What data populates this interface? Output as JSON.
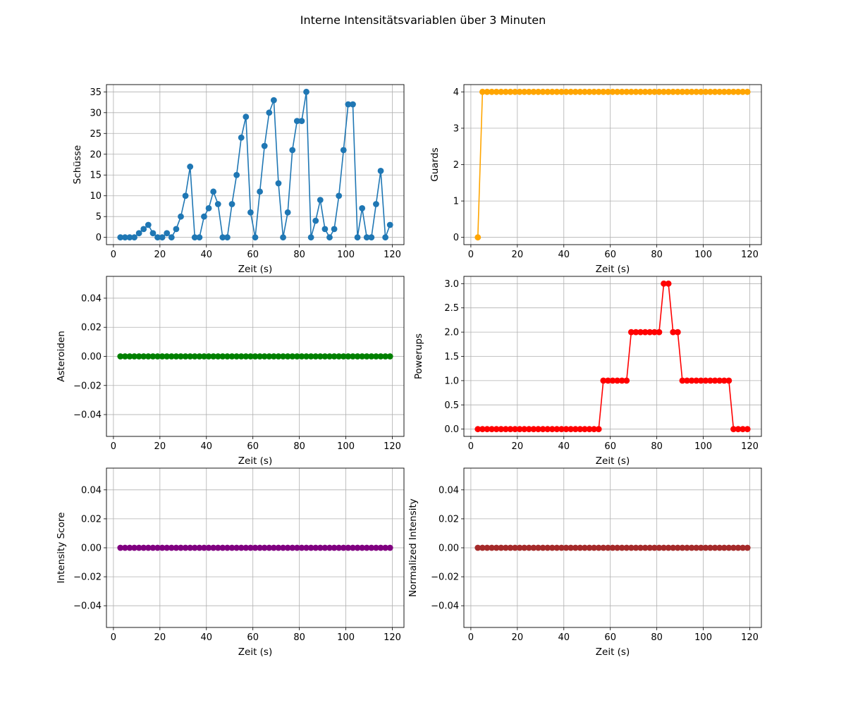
{
  "figure": {
    "suptitle": "Interne Intensitätsvariablen über 3 Minuten"
  },
  "chart_data": [
    {
      "type": "line",
      "xlabel": "Zeit (s)",
      "ylabel": "Schüsse",
      "color": "#1f77b4",
      "grid": true,
      "xlim": [
        -3,
        125
      ],
      "ylim": [
        -1.75,
        36.75
      ],
      "xticks": [
        0,
        20,
        40,
        60,
        80,
        100,
        120
      ],
      "yticks": [
        0,
        5,
        10,
        15,
        20,
        25,
        30,
        35
      ],
      "ytick_labels": [
        "0",
        "5",
        "10",
        "15",
        "20",
        "25",
        "30",
        "35"
      ],
      "x_start": 3,
      "x_step": 2,
      "count": 59,
      "values": [
        0,
        0,
        0,
        0,
        1,
        2,
        3,
        1,
        0,
        0,
        1,
        0,
        2,
        5,
        10,
        17,
        0,
        0,
        5,
        7,
        11,
        8,
        0,
        0,
        8,
        15,
        24,
        29,
        6,
        0,
        11,
        22,
        30,
        33,
        13,
        0,
        6,
        21,
        28,
        28,
        35,
        0,
        4,
        9,
        2,
        0,
        2,
        10,
        21,
        32,
        32,
        0,
        7,
        0,
        0,
        8,
        16,
        0,
        3
      ]
    },
    {
      "type": "line",
      "xlabel": "Zeit (s)",
      "ylabel": "Guards",
      "color": "#ffa500",
      "grid": true,
      "xlim": [
        -3,
        125
      ],
      "ylim": [
        -0.2,
        4.2
      ],
      "xticks": [
        0,
        20,
        40,
        60,
        80,
        100,
        120
      ],
      "yticks": [
        0,
        1,
        2,
        3,
        4
      ],
      "ytick_labels": [
        "0",
        "1",
        "2",
        "3",
        "4"
      ],
      "x_start": 3,
      "x_step": 2,
      "count": 59,
      "values": [
        0,
        4,
        4,
        4,
        4,
        4,
        4,
        4,
        4,
        4,
        4,
        4,
        4,
        4,
        4,
        4,
        4,
        4,
        4,
        4,
        4,
        4,
        4,
        4,
        4,
        4,
        4,
        4,
        4,
        4,
        4,
        4,
        4,
        4,
        4,
        4,
        4,
        4,
        4,
        4,
        4,
        4,
        4,
        4,
        4,
        4,
        4,
        4,
        4,
        4,
        4,
        4,
        4,
        4,
        4,
        4,
        4,
        4,
        4
      ]
    },
    {
      "type": "line",
      "xlabel": "Zeit (s)",
      "ylabel": "Asteroiden",
      "color": "#008000",
      "grid": true,
      "xlim": [
        -3,
        125
      ],
      "ylim": [
        -0.055,
        0.055
      ],
      "xticks": [
        0,
        20,
        40,
        60,
        80,
        100,
        120
      ],
      "yticks": [
        -0.04,
        -0.02,
        0.0,
        0.02,
        0.04
      ],
      "ytick_labels": [
        "−0.04",
        "−0.02",
        "0.00",
        "0.02",
        "0.04"
      ],
      "x_start": 3,
      "x_step": 2,
      "count": 59,
      "values": [
        0,
        0,
        0,
        0,
        0,
        0,
        0,
        0,
        0,
        0,
        0,
        0,
        0,
        0,
        0,
        0,
        0,
        0,
        0,
        0,
        0,
        0,
        0,
        0,
        0,
        0,
        0,
        0,
        0,
        0,
        0,
        0,
        0,
        0,
        0,
        0,
        0,
        0,
        0,
        0,
        0,
        0,
        0,
        0,
        0,
        0,
        0,
        0,
        0,
        0,
        0,
        0,
        0,
        0,
        0,
        0,
        0,
        0,
        0
      ]
    },
    {
      "type": "line",
      "xlabel": "Zeit (s)",
      "ylabel": "Powerups",
      "color": "#ff0000",
      "grid": true,
      "xlim": [
        -3,
        125
      ],
      "ylim": [
        -0.15,
        3.15
      ],
      "xticks": [
        0,
        20,
        40,
        60,
        80,
        100,
        120
      ],
      "yticks": [
        0.0,
        0.5,
        1.0,
        1.5,
        2.0,
        2.5,
        3.0
      ],
      "ytick_labels": [
        "0.0",
        "0.5",
        "1.0",
        "1.5",
        "2.0",
        "2.5",
        "3.0"
      ],
      "x_start": 3,
      "x_step": 2,
      "count": 59,
      "values": [
        0,
        0,
        0,
        0,
        0,
        0,
        0,
        0,
        0,
        0,
        0,
        0,
        0,
        0,
        0,
        0,
        0,
        0,
        0,
        0,
        0,
        0,
        0,
        0,
        0,
        0,
        0,
        1,
        1,
        1,
        1,
        1,
        1,
        2,
        2,
        2,
        2,
        2,
        2,
        2,
        3,
        3,
        2,
        2,
        1,
        1,
        1,
        1,
        1,
        1,
        1,
        1,
        1,
        1,
        1,
        0,
        0,
        0,
        0
      ]
    },
    {
      "type": "line",
      "xlabel": "Zeit (s)",
      "ylabel": "Intensity Score",
      "color": "#800080",
      "grid": true,
      "xlim": [
        -3,
        125
      ],
      "ylim": [
        -0.055,
        0.055
      ],
      "xticks": [
        0,
        20,
        40,
        60,
        80,
        100,
        120
      ],
      "yticks": [
        -0.04,
        -0.02,
        0.0,
        0.02,
        0.04
      ],
      "ytick_labels": [
        "−0.04",
        "−0.02",
        "0.00",
        "0.02",
        "0.04"
      ],
      "x_start": 3,
      "x_step": 2,
      "count": 59,
      "values": [
        0,
        0,
        0,
        0,
        0,
        0,
        0,
        0,
        0,
        0,
        0,
        0,
        0,
        0,
        0,
        0,
        0,
        0,
        0,
        0,
        0,
        0,
        0,
        0,
        0,
        0,
        0,
        0,
        0,
        0,
        0,
        0,
        0,
        0,
        0,
        0,
        0,
        0,
        0,
        0,
        0,
        0,
        0,
        0,
        0,
        0,
        0,
        0,
        0,
        0,
        0,
        0,
        0,
        0,
        0,
        0,
        0,
        0,
        0
      ]
    },
    {
      "type": "line",
      "xlabel": "Zeit (s)",
      "ylabel": "Normalized Intensity",
      "color": "#a52a2a",
      "grid": true,
      "xlim": [
        -3,
        125
      ],
      "ylim": [
        -0.055,
        0.055
      ],
      "xticks": [
        0,
        20,
        40,
        60,
        80,
        100,
        120
      ],
      "yticks": [
        -0.04,
        -0.02,
        0.0,
        0.02,
        0.04
      ],
      "ytick_labels": [
        "−0.04",
        "−0.02",
        "0.00",
        "0.02",
        "0.04"
      ],
      "x_start": 3,
      "x_step": 2,
      "count": 59,
      "values": [
        0,
        0,
        0,
        0,
        0,
        0,
        0,
        0,
        0,
        0,
        0,
        0,
        0,
        0,
        0,
        0,
        0,
        0,
        0,
        0,
        0,
        0,
        0,
        0,
        0,
        0,
        0,
        0,
        0,
        0,
        0,
        0,
        0,
        0,
        0,
        0,
        0,
        0,
        0,
        0,
        0,
        0,
        0,
        0,
        0,
        0,
        0,
        0,
        0,
        0,
        0,
        0,
        0,
        0,
        0,
        0,
        0,
        0,
        0
      ]
    }
  ]
}
